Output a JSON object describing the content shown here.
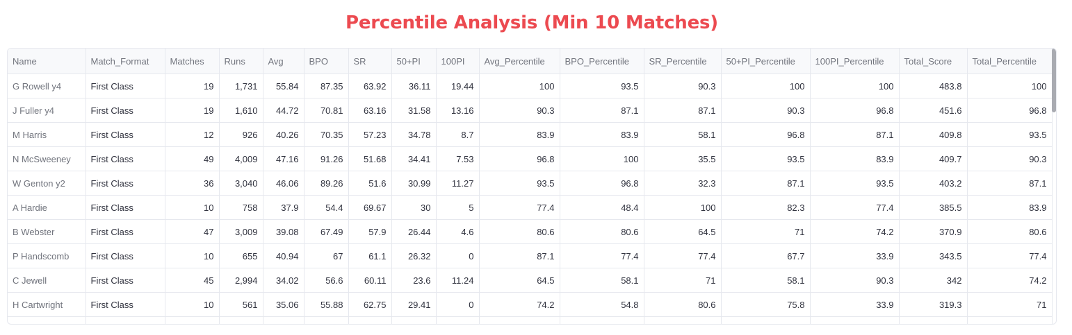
{
  "title": "Percentile Analysis (Min 10 Matches)",
  "columns": [
    "Name",
    "Match_Format",
    "Matches",
    "Runs",
    "Avg",
    "BPO",
    "SR",
    "50+PI",
    "100PI",
    "Avg_Percentile",
    "BPO_Percentile",
    "SR_Percentile",
    "50+PI_Percentile",
    "100PI_Percentile",
    "Total_Score",
    "Total_Percentile"
  ],
  "rows": [
    [
      "G Rowell y4",
      "First Class",
      "19",
      "1,731",
      "55.84",
      "87.35",
      "63.92",
      "36.11",
      "19.44",
      "100",
      "93.5",
      "90.3",
      "100",
      "100",
      "483.8",
      "100"
    ],
    [
      "J Fuller y4",
      "First Class",
      "19",
      "1,610",
      "44.72",
      "70.81",
      "63.16",
      "31.58",
      "13.16",
      "90.3",
      "87.1",
      "87.1",
      "90.3",
      "96.8",
      "451.6",
      "96.8"
    ],
    [
      "M Harris",
      "First Class",
      "12",
      "926",
      "40.26",
      "70.35",
      "57.23",
      "34.78",
      "8.7",
      "83.9",
      "83.9",
      "58.1",
      "96.8",
      "87.1",
      "409.8",
      "93.5"
    ],
    [
      "N McSweeney",
      "First Class",
      "49",
      "4,009",
      "47.16",
      "91.26",
      "51.68",
      "34.41",
      "7.53",
      "96.8",
      "100",
      "35.5",
      "93.5",
      "83.9",
      "409.7",
      "90.3"
    ],
    [
      "W Genton y2",
      "First Class",
      "36",
      "3,040",
      "46.06",
      "89.26",
      "51.6",
      "30.99",
      "11.27",
      "93.5",
      "96.8",
      "32.3",
      "87.1",
      "93.5",
      "403.2",
      "87.1"
    ],
    [
      "A Hardie",
      "First Class",
      "10",
      "758",
      "37.9",
      "54.4",
      "69.67",
      "30",
      "5",
      "77.4",
      "48.4",
      "100",
      "82.3",
      "77.4",
      "385.5",
      "83.9"
    ],
    [
      "B Webster",
      "First Class",
      "47",
      "3,009",
      "39.08",
      "67.49",
      "57.9",
      "26.44",
      "4.6",
      "80.6",
      "80.6",
      "64.5",
      "71",
      "74.2",
      "370.9",
      "80.6"
    ],
    [
      "P Handscomb",
      "First Class",
      "10",
      "655",
      "40.94",
      "67",
      "61.1",
      "26.32",
      "0",
      "87.1",
      "77.4",
      "77.4",
      "67.7",
      "33.9",
      "343.5",
      "77.4"
    ],
    [
      "C Jewell",
      "First Class",
      "45",
      "2,994",
      "34.02",
      "56.6",
      "60.11",
      "23.6",
      "11.24",
      "64.5",
      "58.1",
      "71",
      "58.1",
      "90.3",
      "342",
      "74.2"
    ],
    [
      "H Cartwright",
      "First Class",
      "10",
      "561",
      "35.06",
      "55.88",
      "62.75",
      "29.41",
      "0",
      "74.2",
      "54.8",
      "80.6",
      "75.8",
      "33.9",
      "319.3",
      "71"
    ],
    [
      "",
      "",
      "",
      "",
      "",
      "",
      "",
      "",
      "",
      "",
      "",
      "",
      "",
      "",
      "",
      ""
    ]
  ]
}
